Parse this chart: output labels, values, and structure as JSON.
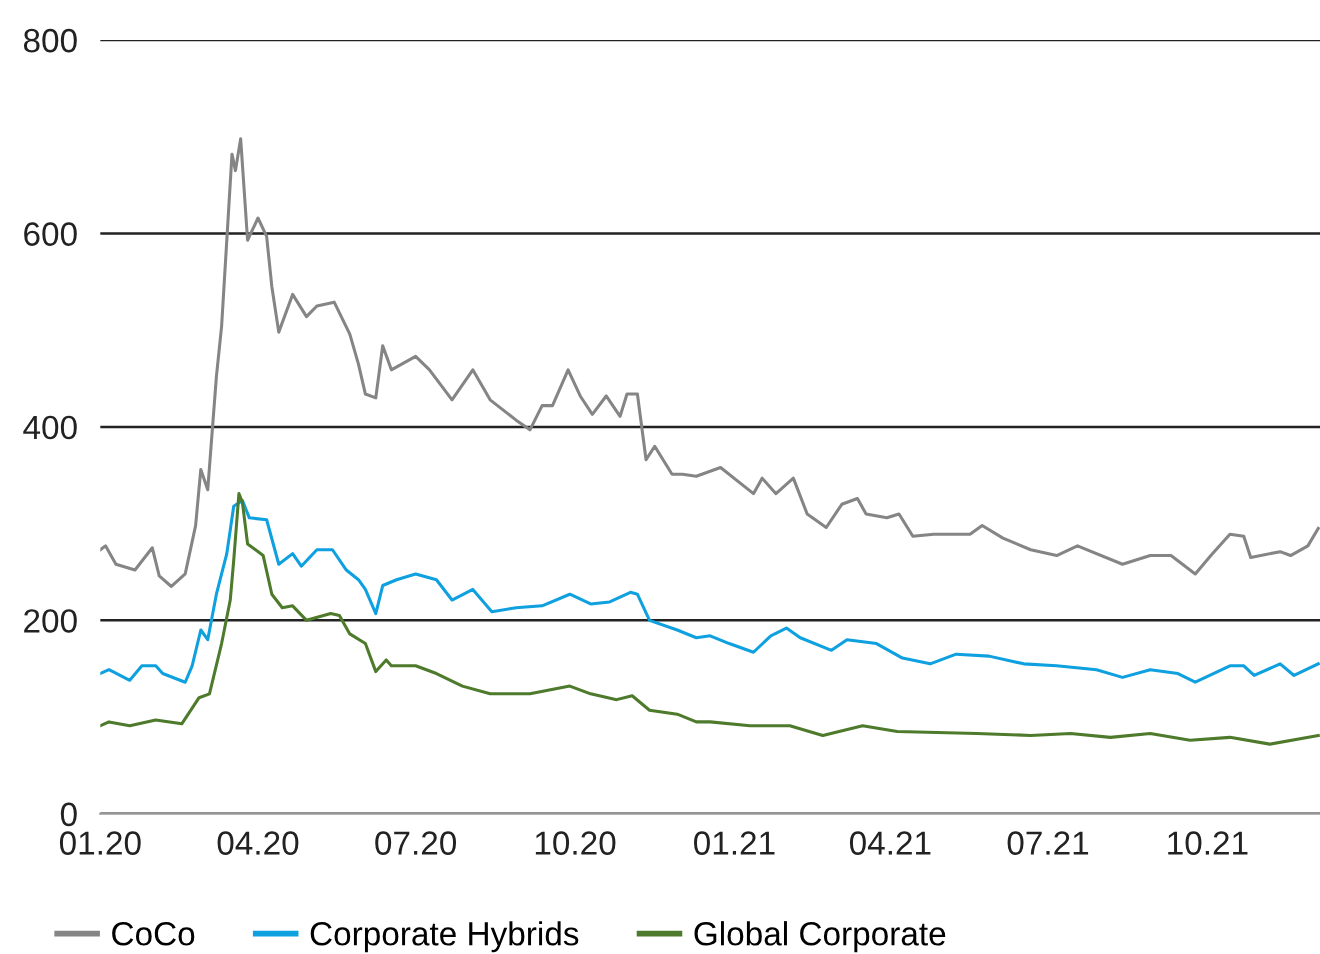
{
  "chart_data": {
    "type": "line",
    "xlim": [
      "2020-01-01",
      "2021-12-05"
    ],
    "ylim": [
      0,
      800
    ],
    "yticks": [
      0,
      200,
      400,
      600,
      800
    ],
    "xticks": [
      {
        "value": "2020-01-01",
        "label": "01.20"
      },
      {
        "value": "2020-04-01",
        "label": "04.20"
      },
      {
        "value": "2020-07-01",
        "label": "07.20"
      },
      {
        "value": "2020-10-01",
        "label": "10.20"
      },
      {
        "value": "2021-01-01",
        "label": "01.21"
      },
      {
        "value": "2021-04-01",
        "label": "04.21"
      },
      {
        "value": "2021-07-01",
        "label": "07.21"
      },
      {
        "value": "2021-10-01",
        "label": "10.21"
      }
    ],
    "grid": "y",
    "legend": "bottom",
    "line_style": "solid",
    "marker": "none",
    "series": [
      {
        "name": "CoCo",
        "color": "#858585",
        "x": [
          "2020-01-01",
          "2020-01-04",
          "2020-01-10",
          "2020-01-21",
          "2020-01-31",
          "2020-02-04",
          "2020-02-11",
          "2020-02-19",
          "2020-02-25",
          "2020-02-28",
          "2020-03-03",
          "2020-03-08",
          "2020-03-11",
          "2020-03-17",
          "2020-03-19",
          "2020-03-22",
          "2020-03-26",
          "2020-04-01",
          "2020-04-06",
          "2020-04-09",
          "2020-04-13",
          "2020-04-21",
          "2020-04-29",
          "2020-05-05",
          "2020-05-15",
          "2020-05-24",
          "2020-05-29",
          "2020-06-02",
          "2020-06-08",
          "2020-06-12",
          "2020-06-17",
          "2020-07-01",
          "2020-07-09",
          "2020-07-22",
          "2020-08-03",
          "2020-08-13",
          "2020-08-28",
          "2020-09-05",
          "2020-09-12",
          "2020-09-18",
          "2020-09-27",
          "2020-10-04",
          "2020-10-11",
          "2020-10-19",
          "2020-10-27",
          "2020-10-31",
          "2020-11-06",
          "2020-11-11",
          "2020-11-16",
          "2020-11-26",
          "2020-12-02",
          "2020-12-10",
          "2020-12-24",
          "2021-01-12",
          "2021-01-17",
          "2021-01-25",
          "2021-02-04",
          "2021-02-12",
          "2021-02-23",
          "2021-03-04",
          "2021-03-13",
          "2021-03-18",
          "2021-03-30",
          "2021-04-06",
          "2021-04-14",
          "2021-04-26",
          "2021-05-17",
          "2021-05-24",
          "2021-06-05",
          "2021-06-21",
          "2021-07-06",
          "2021-07-18",
          "2021-08-13",
          "2021-08-29",
          "2021-09-10",
          "2021-09-24",
          "2021-10-03",
          "2021-10-14",
          "2021-10-22",
          "2021-10-26",
          "2021-11-12",
          "2021-11-18",
          "2021-11-28",
          "2021-12-04"
        ],
        "values": [
          273,
          277,
          258,
          252,
          275,
          246,
          235,
          248,
          298,
          356,
          335,
          452,
          504,
          682,
          665,
          698,
          593,
          616,
          597,
          545,
          498,
          537,
          514,
          525,
          529,
          496,
          465,
          434,
          430,
          484,
          459,
          473,
          459,
          428,
          459,
          428,
          407,
          397,
          422,
          422,
          459,
          432,
          413,
          432,
          411,
          434,
          434,
          366,
          380,
          351,
          351,
          349,
          358,
          331,
          347,
          331,
          347,
          310,
          296,
          320,
          326,
          310,
          306,
          310,
          287,
          289,
          289,
          298,
          285,
          273,
          267,
          277,
          258,
          267,
          267,
          248,
          267,
          289,
          287,
          265,
          271,
          267,
          277,
          295
        ]
      },
      {
        "name": "Corporate Hybrids",
        "color": "#0fa0e0",
        "x": [
          "2020-01-01",
          "2020-01-06",
          "2020-01-18",
          "2020-01-25",
          "2020-02-02",
          "2020-02-06",
          "2020-02-19",
          "2020-02-23",
          "2020-02-28",
          "2020-03-03",
          "2020-03-08",
          "2020-03-14",
          "2020-03-18",
          "2020-03-23",
          "2020-03-27",
          "2020-04-06",
          "2020-04-13",
          "2020-04-21",
          "2020-04-26",
          "2020-05-05",
          "2020-05-14",
          "2020-05-22",
          "2020-05-29",
          "2020-06-02",
          "2020-06-08",
          "2020-06-12",
          "2020-06-20",
          "2020-07-01",
          "2020-07-13",
          "2020-07-22",
          "2020-08-03",
          "2020-08-14",
          "2020-08-28",
          "2020-09-12",
          "2020-09-28",
          "2020-10-10",
          "2020-10-21",
          "2020-11-02",
          "2020-11-06",
          "2020-11-13",
          "2020-11-29",
          "2020-12-10",
          "2020-12-18",
          "2020-12-29",
          "2021-01-12",
          "2021-01-22",
          "2021-01-31",
          "2021-02-08",
          "2021-02-26",
          "2021-03-07",
          "2021-03-24",
          "2021-04-08",
          "2021-04-24",
          "2021-05-09",
          "2021-05-28",
          "2021-06-17",
          "2021-07-06",
          "2021-07-29",
          "2021-08-13",
          "2021-08-29",
          "2021-09-14",
          "2021-09-24",
          "2021-10-14",
          "2021-10-22",
          "2021-10-28",
          "2021-11-12",
          "2021-11-20",
          "2021-12-04"
        ],
        "values": [
          145,
          149,
          138,
          153,
          153,
          145,
          136,
          153,
          190,
          180,
          227,
          269,
          318,
          324,
          306,
          304,
          258,
          269,
          256,
          273,
          273,
          252,
          242,
          232,
          207,
          236,
          242,
          248,
          242,
          221,
          232,
          209,
          213,
          215,
          227,
          217,
          219,
          229,
          227,
          200,
          190,
          182,
          184,
          176,
          167,
          184,
          192,
          182,
          169,
          180,
          176,
          161,
          155,
          165,
          163,
          155,
          153,
          149,
          141,
          149,
          145,
          136,
          153,
          153,
          143,
          155,
          143,
          155
        ]
      },
      {
        "name": "Global Corporate",
        "color": "#4e7a2c",
        "x": [
          "2020-01-01",
          "2020-01-06",
          "2020-01-18",
          "2020-02-02",
          "2020-02-17",
          "2020-02-27",
          "2020-03-04",
          "2020-03-11",
          "2020-03-16",
          "2020-03-18",
          "2020-03-21",
          "2020-03-23",
          "2020-03-26",
          "2020-04-04",
          "2020-04-09",
          "2020-04-15",
          "2020-04-21",
          "2020-04-29",
          "2020-05-13",
          "2020-05-18",
          "2020-05-24",
          "2020-06-02",
          "2020-06-08",
          "2020-06-14",
          "2020-06-17",
          "2020-07-01",
          "2020-07-13",
          "2020-07-28",
          "2020-08-13",
          "2020-09-05",
          "2020-09-28",
          "2020-10-10",
          "2020-10-25",
          "2020-11-03",
          "2020-11-13",
          "2020-11-29",
          "2020-12-10",
          "2020-12-18",
          "2021-01-10",
          "2021-02-02",
          "2021-02-21",
          "2021-03-16",
          "2021-04-05",
          "2021-05-21",
          "2021-06-21",
          "2021-07-14",
          "2021-08-06",
          "2021-08-29",
          "2021-09-21",
          "2021-10-14",
          "2021-11-06",
          "2021-12-04"
        ],
        "values": [
          91,
          95,
          91,
          97,
          93,
          120,
          124,
          176,
          221,
          262,
          331,
          322,
          279,
          267,
          227,
          213,
          215,
          200,
          207,
          205,
          186,
          176,
          147,
          159,
          153,
          153,
          145,
          132,
          124,
          124,
          132,
          124,
          118,
          122,
          107,
          103,
          95,
          95,
          91,
          91,
          81,
          91,
          85,
          83,
          81,
          83,
          79,
          83,
          76,
          79,
          72,
          81
        ]
      }
    ]
  }
}
